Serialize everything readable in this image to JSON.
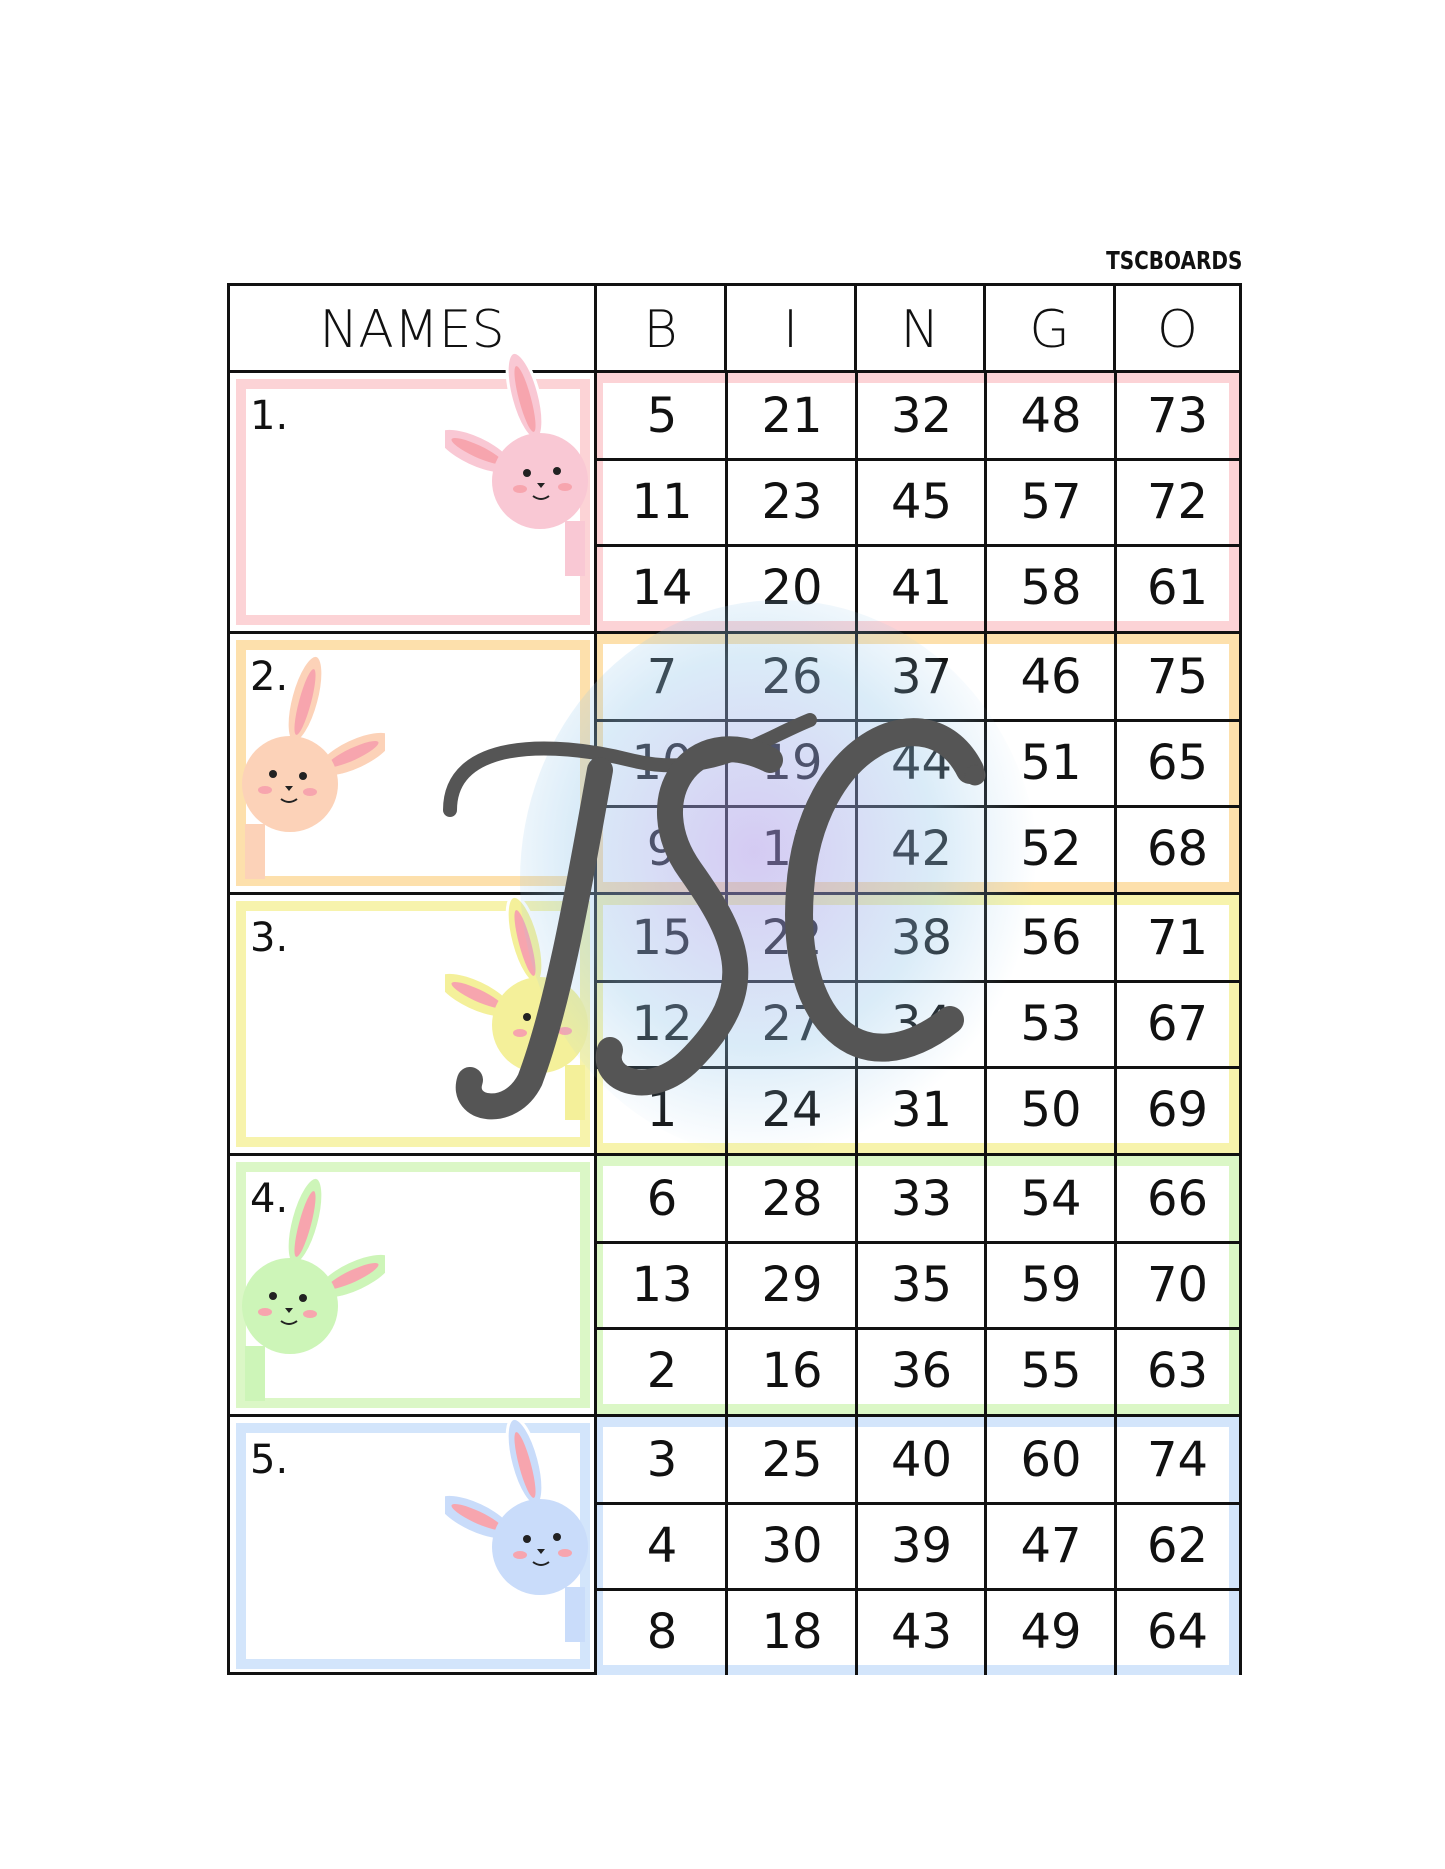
{
  "brand": "TSCBOARDS",
  "headers": [
    "NAMES",
    "B",
    "I",
    "N",
    "G",
    "O"
  ],
  "watermark": "TSC",
  "groups": [
    {
      "label": "1.",
      "color": "#fcd3d6",
      "bunny": "#f9c8d4",
      "rows": [
        [
          "5",
          "21",
          "32",
          "48",
          "73"
        ],
        [
          "11",
          "23",
          "45",
          "57",
          "72"
        ],
        [
          "14",
          "20",
          "41",
          "58",
          "61"
        ]
      ]
    },
    {
      "label": "2.",
      "color": "#fde0ac",
      "bunny": "#fcd2b8",
      "rows": [
        [
          "7",
          "26",
          "37",
          "46",
          "75"
        ],
        [
          "10",
          "19",
          "44",
          "51",
          "65"
        ],
        [
          "9",
          "17",
          "42",
          "52",
          "68"
        ]
      ]
    },
    {
      "label": "3.",
      "color": "#f7f3ac",
      "bunny": "#f4f09a",
      "rows": [
        [
          "15",
          "22",
          "38",
          "56",
          "71"
        ],
        [
          "12",
          "27",
          "34",
          "53",
          "67"
        ],
        [
          "1",
          "24",
          "31",
          "50",
          "69"
        ]
      ]
    },
    {
      "label": "4.",
      "color": "#dbf7c6",
      "bunny": "#cdf5b8",
      "rows": [
        [
          "6",
          "28",
          "33",
          "54",
          "66"
        ],
        [
          "13",
          "29",
          "35",
          "59",
          "70"
        ],
        [
          "2",
          "16",
          "36",
          "55",
          "63"
        ]
      ]
    },
    {
      "label": "5.",
      "color": "#d3e5fb",
      "bunny": "#c9dcfa",
      "rows": [
        [
          "3",
          "25",
          "40",
          "60",
          "74"
        ],
        [
          "4",
          "30",
          "39",
          "47",
          "62"
        ],
        [
          "8",
          "18",
          "43",
          "49",
          "64"
        ]
      ]
    }
  ]
}
